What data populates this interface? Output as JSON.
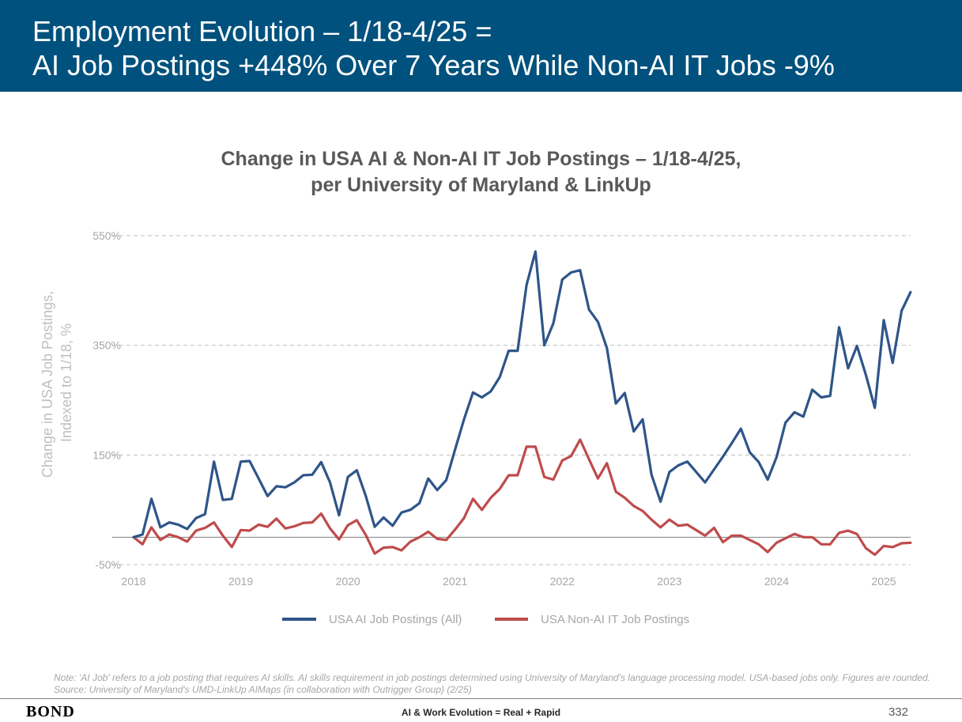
{
  "header": {
    "line1": "Employment Evolution – 1/18-4/25 =",
    "line2": "AI Job Postings +448% Over 7 Years While Non-AI IT Jobs -9%"
  },
  "chart_title": {
    "line1": "Change in USA AI & Non-AI IT Job Postings – 1/18-4/25,",
    "line2": "per University of Maryland & LinkUp"
  },
  "chart_data": {
    "type": "line",
    "ylabel": "Change in USA Job Postings,",
    "ylabel2": "Indexed to 1/18, %",
    "ylim": [
      -50,
      550
    ],
    "yticks": [
      -50,
      150,
      350,
      550
    ],
    "ytick_labels": [
      "-50%",
      "150%",
      "350%",
      "550%"
    ],
    "xlim": [
      2018,
      2025.3
    ],
    "xticks": [
      2018,
      2019,
      2020,
      2021,
      2022,
      2023,
      2024,
      2025
    ],
    "xtick_labels": [
      "2018",
      "2019",
      "2020",
      "2021",
      "2022",
      "2023",
      "2024",
      "2025"
    ],
    "grid": true,
    "legend": "bottom-center",
    "colors": {
      "ai": "#2f5589",
      "nonai": "#bf4b4b",
      "zero_line": "#808080"
    },
    "series": [
      {
        "name": "USA AI Job Postings (All)",
        "x": [
          2018.0,
          2018.083,
          2018.167,
          2018.25,
          2018.333,
          2018.417,
          2018.5,
          2018.583,
          2018.667,
          2018.75,
          2018.833,
          2018.917,
          2019.0,
          2019.083,
          2019.167,
          2019.25,
          2019.333,
          2019.417,
          2019.5,
          2019.583,
          2019.667,
          2019.75,
          2019.833,
          2019.917,
          2020.0,
          2020.083,
          2020.167,
          2020.25,
          2020.333,
          2020.417,
          2020.5,
          2020.583,
          2020.667,
          2020.75,
          2020.833,
          2020.917,
          2021.0,
          2021.083,
          2021.167,
          2021.25,
          2021.333,
          2021.417,
          2021.5,
          2021.583,
          2021.667,
          2021.75,
          2021.833,
          2021.917,
          2022.0,
          2022.083,
          2022.167,
          2022.25,
          2022.333,
          2022.417,
          2022.5,
          2022.583,
          2022.667,
          2022.75,
          2022.833,
          2022.917,
          2023.0,
          2023.083,
          2023.167,
          2023.333,
          2023.5,
          2023.583,
          2023.667,
          2023.75,
          2023.833,
          2023.917,
          2024.0,
          2024.083,
          2024.167,
          2024.25,
          2024.333,
          2024.417,
          2024.5,
          2024.583,
          2024.667,
          2024.75,
          2024.833,
          2024.917,
          2025.0,
          2025.083,
          2025.167,
          2025.25
        ],
        "values": [
          0,
          5,
          70,
          18,
          27,
          23,
          15,
          35,
          42,
          138,
          68,
          70,
          138,
          139,
          107,
          75,
          93,
          91,
          100,
          113,
          114,
          137,
          100,
          40,
          110,
          122,
          75,
          19,
          36,
          21,
          45,
          50,
          62,
          107,
          86,
          104,
          160,
          215,
          264,
          255,
          266,
          292,
          340,
          340,
          460,
          521,
          350,
          390,
          470,
          483,
          487,
          415,
          393,
          345,
          244,
          263,
          193,
          215,
          114,
          65,
          119,
          131,
          138,
          100,
          147,
          172,
          198,
          155,
          137,
          105,
          146,
          209,
          228,
          220,
          269,
          255,
          258,
          383,
          308,
          349,
          296,
          236,
          396,
          318,
          413,
          447
        ]
      },
      {
        "name": "USA Non-AI IT Job Postings",
        "x": [
          2018.0,
          2018.083,
          2018.167,
          2018.25,
          2018.333,
          2018.417,
          2018.5,
          2018.583,
          2018.667,
          2018.75,
          2018.833,
          2018.917,
          2019.0,
          2019.083,
          2019.167,
          2019.25,
          2019.333,
          2019.417,
          2019.5,
          2019.583,
          2019.667,
          2019.75,
          2019.833,
          2019.917,
          2020.0,
          2020.083,
          2020.167,
          2020.25,
          2020.333,
          2020.417,
          2020.5,
          2020.583,
          2020.667,
          2020.75,
          2020.833,
          2020.917,
          2021.0,
          2021.083,
          2021.167,
          2021.25,
          2021.333,
          2021.417,
          2021.5,
          2021.583,
          2021.667,
          2021.75,
          2021.833,
          2021.917,
          2022.0,
          2022.083,
          2022.167,
          2022.25,
          2022.333,
          2022.417,
          2022.5,
          2022.583,
          2022.667,
          2022.75,
          2022.833,
          2022.917,
          2023.0,
          2023.083,
          2023.167,
          2023.333,
          2023.417,
          2023.5,
          2023.583,
          2023.667,
          2023.75,
          2023.833,
          2023.917,
          2024.0,
          2024.083,
          2024.167,
          2024.25,
          2024.333,
          2024.417,
          2024.5,
          2024.583,
          2024.667,
          2024.75,
          2024.833,
          2024.917,
          2025.0,
          2025.083,
          2025.167,
          2025.25
        ],
        "values": [
          0,
          -13,
          18,
          -5,
          5,
          0,
          -8,
          12,
          17,
          27,
          3,
          -18,
          13,
          12,
          23,
          19,
          34,
          16,
          20,
          26,
          27,
          43,
          16,
          -4,
          22,
          31,
          4,
          -30,
          -19,
          -18,
          -24,
          -8,
          0,
          10,
          -3,
          -5,
          14,
          35,
          70,
          50,
          72,
          88,
          113,
          113,
          165,
          165,
          110,
          105,
          140,
          148,
          178,
          142,
          107,
          135,
          83,
          72,
          57,
          48,
          32,
          18,
          32,
          21,
          23,
          3,
          17,
          -9,
          3,
          3,
          -5,
          -13,
          -27,
          -10,
          -2,
          6,
          0,
          0,
          -13,
          -13,
          8,
          12,
          6,
          -20,
          -32,
          -16,
          -18,
          -11,
          -10
        ]
      }
    ]
  },
  "note": "Note: 'AI Job' refers to a job posting that requires AI skills. AI skills requirement in job postings determined using University of Maryland's language processing model. USA-based jobs only. Figures are rounded. Source: University of Maryland's UMD-LinkUp AIMaps (in collaboration with Outrigger Group) (2/25)",
  "footer": {
    "logo": "BOND",
    "center": "AI & Work Evolution = Real + Rapid",
    "page": "332"
  }
}
